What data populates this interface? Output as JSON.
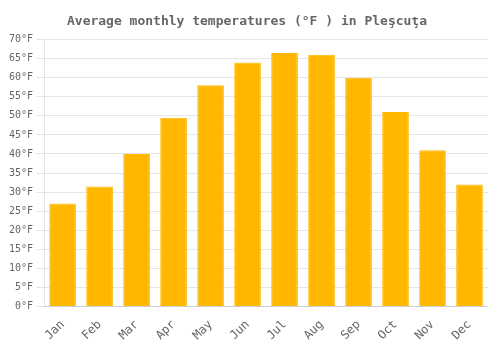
{
  "chart_data": {
    "type": "bar",
    "title": "Average monthly temperatures (°F ) in Pleşcuţa",
    "categories": [
      "Jan",
      "Feb",
      "Mar",
      "Apr",
      "May",
      "Jun",
      "Jul",
      "Aug",
      "Sep",
      "Oct",
      "Nov",
      "Dec"
    ],
    "values": [
      27.0,
      31.5,
      40.0,
      49.5,
      58.0,
      64.0,
      66.5,
      66.0,
      60.0,
      51.0,
      41.0,
      32.0
    ],
    "color": "#FFB700",
    "ylim": [
      0,
      70
    ],
    "yticks": [
      {
        "value": 0,
        "label": "0°F"
      },
      {
        "value": 5,
        "label": "5°F"
      },
      {
        "value": 10,
        "label": "10°F"
      },
      {
        "value": 15,
        "label": "15°F"
      },
      {
        "value": 20,
        "label": "20°F"
      },
      {
        "value": 25,
        "label": "25°F"
      },
      {
        "value": 30,
        "label": "30°F"
      },
      {
        "value": 35,
        "label": "35°F"
      },
      {
        "value": 40,
        "label": "40°F"
      },
      {
        "value": 45,
        "label": "45°F"
      },
      {
        "value": 50,
        "label": "50°F"
      },
      {
        "value": 55,
        "label": "55°F"
      },
      {
        "value": 60,
        "label": "60°F"
      },
      {
        "value": 65,
        "label": "65°F"
      },
      {
        "value": 70,
        "label": "70°F"
      }
    ],
    "grid": true
  }
}
